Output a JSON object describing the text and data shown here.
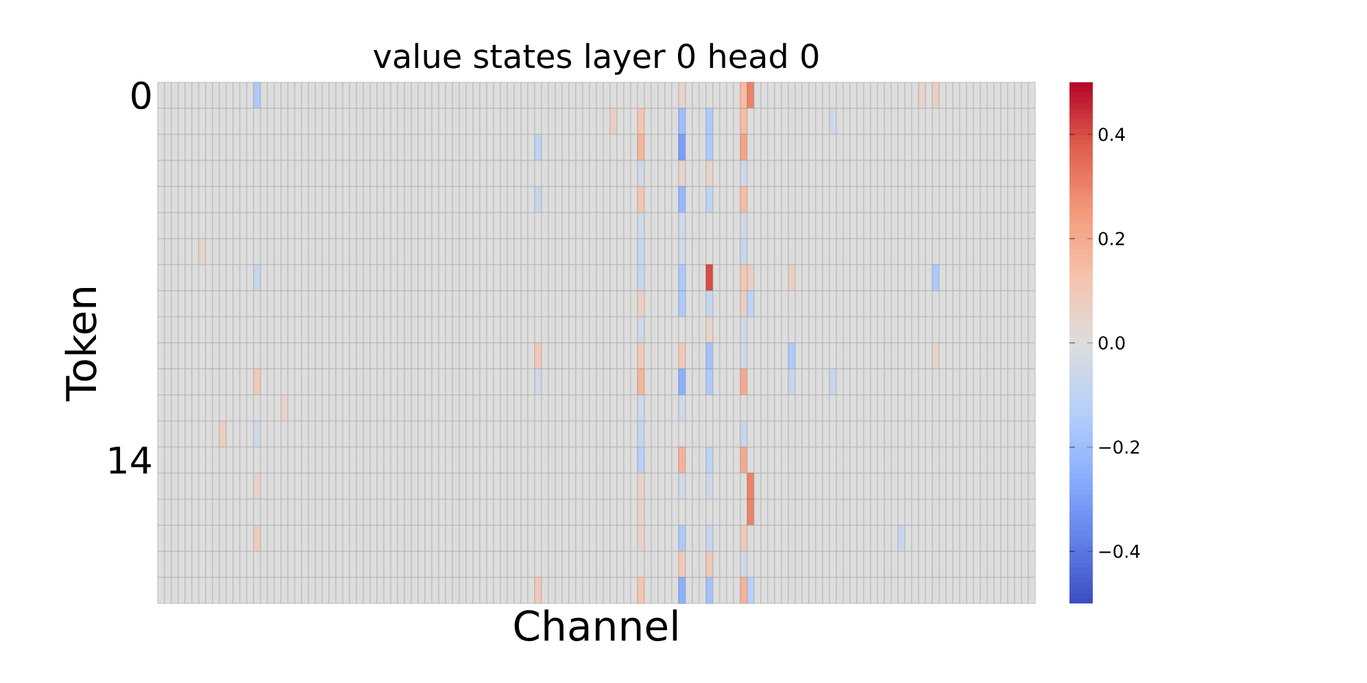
{
  "chart_data": {
    "type": "heatmap",
    "title": "value states layer 0 head 0",
    "xlabel": "Channel",
    "ylabel": "Token",
    "categories": [
      null,
      null,
      null,
      null,
      null,
      null,
      null,
      null,
      null,
      null,
      null,
      null,
      null,
      null,
      null,
      null,
      null,
      null,
      null,
      null,
      null,
      null,
      null,
      null,
      null,
      null,
      null,
      null,
      null,
      null,
      null,
      null,
      null,
      null,
      null,
      null,
      null,
      null,
      null,
      null,
      null,
      null,
      null,
      null,
      null,
      null,
      null,
      null,
      null,
      null,
      null,
      null,
      null,
      null,
      null,
      null,
      null,
      null,
      null,
      null,
      null,
      null,
      null,
      null,
      null,
      null,
      null,
      null,
      null,
      null,
      null,
      null,
      null,
      null,
      null,
      null,
      null,
      null,
      null,
      null,
      null,
      null,
      null,
      null,
      null,
      null,
      null,
      null,
      null,
      null,
      null,
      null,
      null,
      null,
      null,
      null,
      null,
      null,
      null,
      null,
      null,
      null,
      null,
      null,
      null,
      null,
      null,
      null,
      null,
      null,
      null,
      null,
      null,
      null,
      null,
      null,
      null,
      null,
      null,
      null,
      null,
      null,
      null,
      null,
      null,
      null,
      null,
      null
    ],
    "y_categories": [
      "0",
      null,
      null,
      null,
      null,
      null,
      null,
      null,
      null,
      null,
      null,
      null,
      null,
      null,
      "14",
      null,
      null,
      null,
      null,
      null
    ],
    "clim": [
      -0.5,
      0.5
    ],
    "cticks": [
      {
        "value": -0.4,
        "label": "−0.4"
      },
      {
        "value": -0.2,
        "label": "−0.2"
      },
      {
        "value": 0,
        "label": "0.0"
      },
      {
        "value": 0.2,
        "label": "0.2"
      },
      {
        "value": 0.4,
        "label": "0.4"
      }
    ],
    "cells": [
      [
        0,
        0,
        0,
        0,
        0,
        0,
        0,
        0,
        0,
        0,
        0,
        0,
        0,
        0,
        -0.15,
        0,
        0,
        0,
        0,
        0,
        0,
        0,
        0,
        0,
        0,
        0,
        0,
        0,
        0,
        0,
        0,
        0,
        0,
        0,
        0,
        0,
        0,
        0,
        0,
        0,
        0,
        0,
        0,
        0,
        0,
        0,
        0,
        0,
        0,
        0,
        0,
        0,
        0,
        0,
        0,
        0,
        0,
        0,
        0,
        0,
        0,
        0,
        0,
        0,
        0,
        0,
        0,
        0,
        0,
        0,
        0,
        0,
        0,
        0,
        0,
        0,
        0.05,
        0,
        0,
        0,
        0,
        0,
        0,
        0,
        0,
        0.15,
        0.3,
        0,
        0,
        0,
        0,
        0,
        0,
        0,
        0,
        0,
        0,
        0,
        0,
        0,
        0,
        0,
        0,
        0,
        0,
        0,
        0,
        0,
        0,
        0,
        0,
        0.05,
        0,
        0.07,
        0,
        0,
        0,
        0,
        0,
        0,
        0,
        0,
        0,
        0,
        0,
        0,
        0,
        0
      ],
      [
        0,
        0,
        0,
        0,
        0,
        0,
        0,
        0,
        0,
        0,
        0,
        0,
        0,
        0,
        0,
        0,
        0,
        0,
        0,
        0,
        0,
        0,
        0,
        0,
        0,
        0,
        0,
        0,
        0,
        0,
        0,
        0,
        0,
        0,
        0,
        0,
        0,
        0,
        0,
        0,
        0,
        0,
        0,
        0,
        0,
        0,
        0,
        0,
        0,
        0,
        0,
        0,
        0,
        0,
        0,
        0,
        0,
        0,
        0,
        0,
        0,
        0,
        0,
        0,
        0,
        0,
        0.07,
        0,
        0,
        0,
        0.12,
        0,
        0,
        0,
        0,
        0,
        -0.2,
        0,
        0,
        0,
        -0.15,
        0,
        0,
        0,
        0,
        0.15,
        0,
        0,
        0,
        0,
        0,
        0,
        0,
        0,
        0,
        0,
        0,
        0,
        -0.05,
        0,
        0,
        0,
        0,
        0,
        0,
        0,
        0,
        0,
        0,
        0,
        0,
        0,
        0,
        0,
        0,
        0,
        0,
        0,
        0,
        0,
        0,
        0,
        0,
        0,
        0,
        0,
        0,
        0
      ],
      [
        0,
        0,
        0,
        0,
        0,
        0,
        0,
        0,
        0,
        0,
        0,
        0,
        0,
        0,
        0,
        0,
        0,
        0,
        0,
        0,
        0,
        0,
        0,
        0,
        0,
        0,
        0,
        0,
        0,
        0,
        0,
        0,
        0,
        0,
        0,
        0,
        0,
        0,
        0,
        0,
        0,
        0,
        0,
        0,
        0,
        0,
        0,
        0,
        0,
        0,
        0,
        0,
        0,
        0,
        0,
        -0.1,
        0,
        0,
        0,
        0,
        0,
        0,
        0,
        0,
        0,
        0,
        0,
        0,
        0,
        0,
        0.17,
        0,
        0,
        0,
        0,
        0,
        -0.3,
        0,
        0,
        0,
        -0.15,
        0,
        0,
        0,
        0,
        0.22,
        0,
        0,
        0,
        0,
        0,
        0,
        0,
        0,
        0,
        0,
        0,
        0,
        0,
        0,
        0,
        0,
        0,
        0,
        0,
        0,
        0,
        0,
        0,
        0,
        0,
        0,
        0,
        0,
        0,
        0,
        0,
        0,
        0,
        0,
        0,
        0,
        0,
        0,
        0,
        0,
        0,
        0
      ],
      [
        0,
        0,
        0,
        0,
        0,
        0,
        0,
        0,
        0,
        0,
        0,
        0,
        0,
        0,
        0,
        0,
        0,
        0,
        0,
        0,
        0,
        0,
        0,
        0,
        0,
        0,
        0,
        0,
        0,
        0,
        0,
        0,
        0,
        0,
        0,
        0,
        0,
        0,
        0,
        0,
        0,
        0,
        0,
        0,
        0,
        0,
        0,
        0,
        0,
        0,
        0,
        0,
        0,
        0,
        0,
        0,
        0,
        0,
        0,
        0,
        0,
        0,
        0,
        0,
        0,
        0,
        0,
        0,
        0,
        0,
        -0.05,
        0,
        0,
        0,
        0,
        0,
        0.05,
        0,
        0,
        0,
        0.05,
        0,
        0,
        0,
        0,
        -0.05,
        0,
        0,
        0,
        0,
        0,
        0,
        0,
        0,
        0,
        0,
        0,
        0,
        0,
        0,
        0,
        0,
        0,
        0,
        0,
        0,
        0,
        0,
        0,
        0,
        0,
        0,
        0,
        0,
        0,
        0,
        0,
        0,
        0,
        0,
        0,
        0,
        0,
        0,
        0,
        0,
        0,
        0
      ],
      [
        0,
        0,
        0,
        0,
        0,
        0,
        0,
        0,
        0,
        0,
        0,
        0,
        0,
        0,
        0,
        0,
        0,
        0,
        0,
        0,
        0,
        0,
        0,
        0,
        0,
        0,
        0,
        0,
        0,
        0,
        0,
        0,
        0,
        0,
        0,
        0,
        0,
        0,
        0,
        0,
        0,
        0,
        0,
        0,
        0,
        0,
        0,
        0,
        0,
        0,
        0,
        0,
        0,
        0,
        0,
        -0.07,
        0,
        0,
        0,
        0,
        0,
        0,
        0,
        0,
        0,
        0,
        0,
        0,
        0,
        0,
        0.12,
        0,
        0,
        0,
        0,
        0,
        -0.22,
        0,
        0,
        0,
        -0.1,
        0,
        0,
        0,
        0,
        0.15,
        0,
        0,
        0,
        0,
        0,
        0,
        0,
        0,
        0,
        0,
        0,
        0,
        0,
        0,
        0,
        0,
        0,
        0,
        0,
        0,
        0,
        0,
        0,
        0,
        0,
        0,
        0,
        0,
        0,
        0,
        0,
        0,
        0,
        0,
        0,
        0,
        0,
        0,
        0,
        0,
        0,
        0
      ],
      [
        0,
        0,
        0,
        0,
        0,
        0,
        0,
        0,
        0,
        0,
        0,
        0,
        0,
        0,
        0,
        0,
        0,
        0,
        0,
        0,
        0,
        0,
        0,
        0,
        0,
        0,
        0,
        0,
        0,
        0,
        0,
        0,
        0,
        0,
        0,
        0,
        0,
        0,
        0,
        0,
        0,
        0,
        0,
        0,
        0,
        0,
        0,
        0,
        0,
        0,
        0,
        0,
        0,
        0,
        0,
        0,
        0,
        0,
        0,
        0,
        0,
        0,
        0,
        0,
        0,
        0,
        0,
        0,
        0,
        0,
        -0.05,
        0,
        0,
        0,
        0,
        0,
        -0.05,
        0,
        0,
        0,
        0,
        0,
        0,
        0,
        0,
        -0.05,
        0,
        0,
        0,
        0,
        0,
        0,
        0,
        0,
        0,
        0,
        0,
        0,
        0,
        0,
        0,
        0,
        0,
        0,
        0,
        0,
        0,
        0,
        0,
        0,
        0,
        0,
        0,
        0,
        0,
        0,
        0,
        0,
        0,
        0,
        0,
        0,
        0,
        0,
        0,
        0,
        0,
        0
      ],
      [
        0,
        0,
        0,
        0,
        0,
        0,
        0.05,
        0,
        0,
        0,
        0,
        0,
        0,
        0,
        0,
        0,
        0,
        0,
        0,
        0,
        0,
        0,
        0,
        0,
        0,
        0,
        0,
        0,
        0,
        0,
        0,
        0,
        0,
        0,
        0,
        0,
        0,
        0,
        0,
        0,
        0,
        0,
        0,
        0,
        0,
        0,
        0,
        0,
        0,
        0,
        0,
        0,
        0,
        0,
        0,
        0,
        0,
        0,
        0,
        0,
        0,
        0,
        0,
        0,
        0,
        0,
        0,
        0,
        0,
        0,
        -0.07,
        0,
        0,
        0,
        0,
        0,
        -0.05,
        0,
        0,
        0,
        0,
        0,
        0,
        0,
        0,
        -0.07,
        0,
        0,
        0,
        0,
        0,
        0,
        0,
        0,
        0,
        0,
        0,
        0,
        0,
        0,
        0,
        0,
        0,
        0,
        0,
        0,
        0,
        0,
        0,
        0,
        0,
        0,
        0,
        0,
        0,
        0,
        0,
        0,
        0,
        0,
        0,
        0,
        0,
        0,
        0,
        0,
        0,
        0
      ],
      [
        0,
        0,
        0,
        0,
        0,
        0,
        0,
        0,
        0,
        0,
        0,
        0,
        0,
        0,
        -0.07,
        0,
        0,
        0,
        0,
        0,
        0,
        0,
        0,
        0,
        0,
        0,
        0,
        0,
        0,
        0,
        0,
        0,
        0,
        0,
        0,
        0,
        0,
        0,
        0,
        0,
        0,
        0,
        0,
        0,
        0,
        0,
        0,
        0,
        0,
        0,
        0,
        0,
        0,
        0,
        0,
        0,
        0,
        0,
        0,
        0,
        0,
        0,
        0,
        0,
        0,
        0,
        0,
        0,
        0,
        0,
        -0.07,
        0,
        0,
        0,
        0,
        0,
        -0.15,
        0,
        0,
        0,
        0.4,
        0,
        0,
        0,
        0,
        0.1,
        0.07,
        0,
        0,
        0,
        0,
        0,
        0.07,
        0,
        0,
        0,
        0,
        0,
        0,
        0,
        0,
        0,
        0,
        0,
        0,
        0,
        0,
        0,
        0,
        0,
        0,
        0,
        0,
        -0.15,
        0,
        0,
        0,
        0,
        0,
        0,
        0,
        0,
        0,
        0,
        0,
        0,
        0,
        0
      ],
      [
        0,
        0,
        0,
        0,
        0,
        0,
        0,
        0,
        0,
        0,
        0,
        0,
        0,
        0,
        0,
        0,
        0,
        0,
        0,
        0,
        0,
        0,
        0,
        0,
        0,
        0,
        0,
        0,
        0,
        0,
        0,
        0,
        0,
        0,
        0,
        0,
        0,
        0,
        0,
        0,
        0,
        0,
        0,
        0,
        0,
        0,
        0,
        0,
        0,
        0,
        0,
        0,
        0,
        0,
        0,
        0,
        0,
        0,
        0,
        0,
        0,
        0,
        0,
        0,
        0,
        0,
        0,
        0,
        0,
        0,
        0.07,
        0,
        0,
        0,
        0,
        0,
        -0.15,
        0,
        0,
        0,
        -0.08,
        0,
        0,
        0,
        0,
        0.08,
        -0.1,
        0,
        0,
        0,
        0,
        0,
        0,
        0,
        0,
        0,
        0,
        0,
        0,
        0,
        0,
        0,
        0,
        0,
        0,
        0,
        0,
        0,
        0,
        0,
        0,
        0,
        0,
        0,
        0,
        0,
        0,
        0,
        0,
        0,
        0,
        0,
        0,
        0,
        0,
        0,
        0,
        0
      ],
      [
        0,
        0,
        0,
        0,
        0,
        0,
        0,
        0,
        0,
        0,
        0,
        0,
        0,
        0,
        0,
        0,
        0,
        0,
        0,
        0,
        0,
        0,
        0,
        0,
        0,
        0,
        0,
        0,
        0,
        0,
        0,
        0,
        0,
        0,
        0,
        0,
        0,
        0,
        0,
        0,
        0,
        0,
        0,
        0,
        0,
        0,
        0,
        0,
        0,
        0,
        0,
        0,
        0,
        0,
        0,
        0,
        0,
        0,
        0,
        0,
        0,
        0,
        0,
        0,
        0,
        0,
        0,
        0,
        0,
        0,
        -0.05,
        0,
        0,
        0,
        0,
        0,
        0,
        0,
        0,
        0,
        0.05,
        0,
        0,
        0,
        0,
        -0.05,
        0,
        0,
        0,
        0,
        0,
        0,
        0,
        0,
        0,
        0,
        0,
        0,
        0,
        0,
        0,
        0,
        0,
        0,
        0,
        0,
        0,
        0,
        0,
        0,
        0,
        0,
        0,
        0,
        0,
        0,
        0,
        0,
        0,
        0,
        0,
        0,
        0,
        0,
        0,
        0,
        0,
        0
      ],
      [
        0,
        0,
        0,
        0,
        0,
        0,
        0,
        0,
        0,
        0,
        0,
        0,
        0,
        0,
        0,
        0,
        0,
        0,
        0,
        0,
        0,
        0,
        0,
        0,
        0,
        0,
        0,
        0,
        0,
        0,
        0,
        0,
        0,
        0,
        0,
        0,
        0,
        0,
        0,
        0,
        0,
        0,
        0,
        0,
        0,
        0,
        0,
        0,
        0,
        0,
        0,
        0,
        0,
        0,
        0,
        0.1,
        0,
        0,
        0,
        0,
        0,
        0,
        0,
        0,
        0,
        0,
        0,
        0,
        0,
        0,
        0.1,
        0,
        0,
        0,
        0,
        0,
        0.1,
        0,
        0,
        0,
        -0.18,
        0,
        0,
        0,
        0,
        -0.05,
        0,
        0,
        0,
        0,
        0,
        0,
        -0.15,
        0,
        0,
        0,
        0,
        0,
        0,
        0,
        0,
        0,
        0,
        0,
        0,
        0,
        0,
        0,
        0,
        0,
        0,
        0,
        0,
        0.05,
        0,
        0,
        0,
        0,
        0,
        0,
        0,
        0,
        0,
        0,
        0,
        0,
        0,
        0
      ],
      [
        0,
        0,
        0,
        0,
        0,
        0,
        0,
        0,
        0,
        0,
        0,
        0,
        0,
        0,
        0.1,
        0,
        0,
        0,
        0,
        0,
        0,
        0,
        0,
        0,
        0,
        0,
        0,
        0,
        0,
        0,
        0,
        0,
        0,
        0,
        0,
        0,
        0,
        0,
        0,
        0,
        0,
        0,
        0,
        0,
        0,
        0,
        0,
        0,
        0,
        0,
        0,
        0,
        0,
        0,
        0,
        -0.05,
        0,
        0,
        0,
        0,
        0,
        0,
        0,
        0,
        0,
        0,
        0,
        0,
        0,
        0,
        0.17,
        0,
        0,
        0,
        0,
        0,
        -0.25,
        0,
        0,
        0,
        -0.15,
        0,
        0,
        0,
        0,
        0.2,
        0,
        0,
        0,
        0,
        0,
        0,
        -0.07,
        0,
        0,
        0,
        0,
        0,
        -0.07,
        0,
        0,
        0,
        0,
        0,
        0,
        0,
        0,
        0,
        0,
        0,
        0,
        0,
        0,
        0,
        0,
        0,
        0,
        0,
        0,
        0,
        0,
        0,
        0,
        0,
        0,
        0,
        0,
        0
      ],
      [
        0,
        0,
        0,
        0,
        0,
        0,
        0,
        0,
        0,
        0,
        0,
        0,
        0,
        0,
        0,
        0,
        0,
        0,
        0.05,
        0,
        0,
        0,
        0,
        0,
        0,
        0,
        0,
        0,
        0,
        0,
        0,
        0,
        0,
        0,
        0,
        0,
        0,
        0,
        0,
        0,
        0,
        0,
        0,
        0,
        0,
        0,
        0,
        0,
        0,
        0,
        0,
        0,
        0,
        0,
        0,
        0,
        0,
        0,
        0,
        0,
        0,
        0,
        0,
        0,
        0,
        0,
        0,
        0,
        0,
        0,
        -0.05,
        0,
        0,
        0,
        0,
        0,
        -0.05,
        0,
        0,
        0,
        0,
        0,
        0,
        0,
        0,
        0,
        0,
        0,
        0,
        0,
        0,
        0,
        0,
        0,
        0,
        0,
        0,
        0,
        0,
        0,
        0,
        0,
        0,
        0,
        0,
        0,
        0,
        0,
        0,
        0,
        0,
        0,
        0,
        0,
        0,
        0,
        0,
        0,
        0,
        0,
        0,
        0,
        0,
        0,
        0,
        0,
        0,
        0
      ],
      [
        0,
        0,
        0,
        0,
        0,
        0,
        0,
        0,
        0,
        0.07,
        0,
        0,
        0,
        0,
        -0.05,
        0,
        0,
        0,
        0,
        0,
        0,
        0,
        0,
        0,
        0,
        0,
        0,
        0,
        0,
        0,
        0,
        0,
        0,
        0,
        0,
        0,
        0,
        0,
        0,
        0,
        0,
        0,
        0,
        0,
        0,
        0,
        0,
        0,
        0,
        0,
        0,
        0,
        0,
        0,
        0,
        0,
        0,
        0,
        0,
        0,
        0,
        0,
        0,
        0,
        0,
        0,
        0,
        0,
        0,
        0,
        -0.08,
        0,
        0,
        0,
        0,
        0,
        0,
        0,
        0,
        0,
        0,
        0,
        0,
        0,
        0,
        -0.07,
        0,
        0,
        0,
        0,
        0,
        0,
        0,
        0,
        0,
        0,
        0,
        0,
        0,
        0,
        0,
        0,
        0,
        0,
        0,
        0,
        0,
        0,
        0,
        0,
        0,
        0,
        0,
        0,
        0,
        0,
        0,
        0,
        0,
        0,
        0,
        0,
        0,
        0,
        0,
        0,
        0,
        0
      ],
      [
        0,
        0,
        0,
        0,
        0,
        0,
        0,
        0,
        0,
        0,
        0,
        0,
        0,
        0,
        0,
        0,
        0,
        0,
        0,
        0,
        0,
        0,
        0,
        0,
        0,
        0,
        0,
        0,
        0,
        0,
        0,
        0,
        0,
        0,
        0,
        0,
        0,
        0,
        0,
        0,
        0,
        0,
        0,
        0,
        0,
        0,
        0,
        0,
        0,
        0,
        0,
        0,
        0,
        0,
        0,
        0,
        0,
        0,
        0,
        0,
        0,
        0,
        0,
        0,
        0,
        0,
        0,
        0,
        0,
        0,
        -0.12,
        0,
        0,
        0,
        0,
        0,
        0.18,
        0,
        0,
        0,
        -0.1,
        0,
        0,
        0,
        0,
        0.2,
        0,
        0,
        0,
        0,
        0,
        0,
        0,
        0,
        0,
        0,
        0,
        0,
        0,
        0,
        0,
        0,
        0,
        0,
        0,
        0,
        0,
        0,
        0,
        0,
        0,
        0,
        0,
        0,
        0,
        0,
        0,
        0,
        0,
        0,
        0,
        0,
        0,
        0,
        0,
        0,
        0,
        0
      ],
      [
        0,
        0,
        0,
        0,
        0,
        0,
        0,
        0,
        0,
        0,
        0,
        0,
        0,
        0,
        0.05,
        0,
        0,
        0,
        0,
        0,
        0,
        0,
        0,
        0,
        0,
        0,
        0,
        0,
        0,
        0,
        0,
        0,
        0,
        0,
        0,
        0,
        0,
        0,
        0,
        0,
        0,
        0,
        0,
        0,
        0,
        0,
        0,
        0,
        0,
        0,
        0,
        0,
        0,
        0,
        0,
        0,
        0,
        0,
        0,
        0,
        0,
        0,
        0,
        0,
        0,
        0,
        0,
        0,
        0,
        0,
        0.05,
        0,
        0,
        0,
        0,
        0,
        -0.05,
        0,
        0,
        0,
        -0.05,
        0,
        0,
        0,
        0,
        0,
        0.3,
        0,
        0,
        0,
        0,
        0,
        0,
        0,
        0,
        0,
        0,
        0,
        0,
        0,
        0,
        0,
        0,
        0,
        0,
        0,
        0,
        0,
        0,
        0,
        0,
        0,
        0,
        0,
        0,
        0,
        0,
        0,
        0,
        0,
        0,
        0,
        0,
        0,
        0,
        0,
        0,
        0
      ],
      [
        0,
        0,
        0,
        0,
        0,
        0,
        0,
        0,
        0,
        0,
        0,
        0,
        0,
        0,
        0,
        0,
        0,
        0,
        0,
        0,
        0,
        0,
        0,
        0,
        0,
        0,
        0,
        0,
        0,
        0,
        0,
        0,
        0,
        0,
        0,
        0,
        0,
        0,
        0,
        0,
        0,
        0,
        0,
        0,
        0,
        0,
        0,
        0,
        0,
        0,
        0,
        0,
        0,
        0,
        0,
        0,
        0,
        0,
        0,
        0,
        0,
        0,
        0,
        0,
        0,
        0,
        0,
        0,
        0,
        0,
        0.05,
        0,
        0,
        0,
        0,
        0,
        0,
        0,
        0,
        0,
        0,
        0,
        0,
        0,
        0,
        0,
        0.3,
        0,
        0,
        0,
        0,
        0,
        0,
        0,
        0,
        0,
        0,
        0,
        0,
        0,
        0,
        0,
        0,
        0,
        0,
        0,
        0,
        0,
        0,
        0,
        0,
        0,
        0,
        0,
        0,
        0,
        0,
        0,
        0,
        0,
        0,
        0,
        0,
        0,
        0,
        0,
        0,
        0
      ],
      [
        0,
        0,
        0,
        0,
        0,
        0,
        0,
        0,
        0,
        0,
        0,
        0,
        0,
        0,
        0.08,
        0,
        0,
        0,
        0,
        0,
        0,
        0,
        0,
        0,
        0,
        0,
        0,
        0,
        0,
        0,
        0,
        0,
        0,
        0,
        0,
        0,
        0,
        0,
        0,
        0,
        0,
        0,
        0,
        0,
        0,
        0,
        0,
        0,
        0,
        0,
        0,
        0,
        0,
        0,
        0,
        0,
        0,
        0,
        0,
        0,
        0,
        0,
        0,
        0,
        0,
        0,
        0,
        0,
        0,
        0,
        0.05,
        0,
        0,
        0,
        0,
        0,
        -0.15,
        0,
        0,
        0,
        -0.07,
        0,
        0,
        0,
        0,
        0.1,
        0,
        0,
        0,
        0,
        0,
        0,
        0,
        0,
        0,
        0,
        0,
        0,
        0,
        0,
        0,
        0,
        0,
        0,
        0,
        0,
        0,
        0,
        -0.07,
        0,
        0,
        0,
        0,
        0,
        0,
        0,
        0,
        0,
        0,
        0,
        0,
        0,
        0,
        0,
        0,
        0,
        0,
        0
      ],
      [
        0,
        0,
        0,
        0,
        0,
        0,
        0,
        0,
        0,
        0,
        0,
        0,
        0,
        0,
        0,
        0,
        0,
        0,
        0,
        0,
        0,
        0,
        0,
        0,
        0,
        0,
        0,
        0,
        0,
        0,
        0,
        0,
        0,
        0,
        0,
        0,
        0,
        0,
        0,
        0,
        0,
        0,
        0,
        0,
        0,
        0,
        0,
        0,
        0,
        0,
        0,
        0,
        0,
        0,
        0,
        0,
        0,
        0,
        0,
        0,
        0,
        0,
        0,
        0,
        0,
        0,
        0,
        0,
        0,
        0,
        0,
        0,
        0,
        0,
        0,
        0,
        0.1,
        0,
        0,
        0,
        0.1,
        0,
        0,
        0,
        0,
        -0.05,
        0,
        0,
        0,
        0,
        0,
        0,
        0,
        0,
        0,
        0,
        0,
        0,
        0,
        0,
        0,
        0,
        0,
        0,
        0,
        0,
        0,
        0,
        0,
        0,
        0,
        0,
        0,
        0,
        0,
        0,
        0,
        0,
        0,
        0,
        0,
        0,
        0,
        0,
        0,
        0,
        0,
        0
      ],
      [
        0,
        0,
        0,
        0,
        0,
        0,
        0,
        0,
        0,
        0,
        0,
        0,
        0,
        0,
        0,
        0,
        0,
        0,
        0,
        0,
        0,
        0,
        0,
        0,
        0,
        0,
        0,
        0,
        0,
        0,
        0,
        0,
        0,
        0,
        0,
        0,
        0,
        0,
        0,
        0,
        0,
        0,
        0,
        0,
        0,
        0,
        0,
        0,
        0,
        0,
        0,
        0,
        0,
        0,
        0,
        0.1,
        0,
        0,
        0,
        0,
        0,
        0,
        0,
        0,
        0,
        0,
        0,
        0,
        0,
        0,
        0.12,
        0,
        0,
        0,
        0,
        0,
        -0.25,
        0,
        0,
        0,
        -0.18,
        0,
        0,
        0,
        0,
        0.18,
        -0.12,
        0,
        0,
        0,
        0,
        0,
        0,
        0,
        0,
        0,
        0,
        0,
        0,
        0,
        0,
        0,
        0,
        0,
        0,
        0,
        0,
        0,
        0,
        0,
        0,
        0,
        0,
        0,
        0,
        0,
        0,
        0,
        0,
        0,
        0,
        0,
        0,
        0,
        0,
        0,
        0,
        0
      ]
    ]
  }
}
